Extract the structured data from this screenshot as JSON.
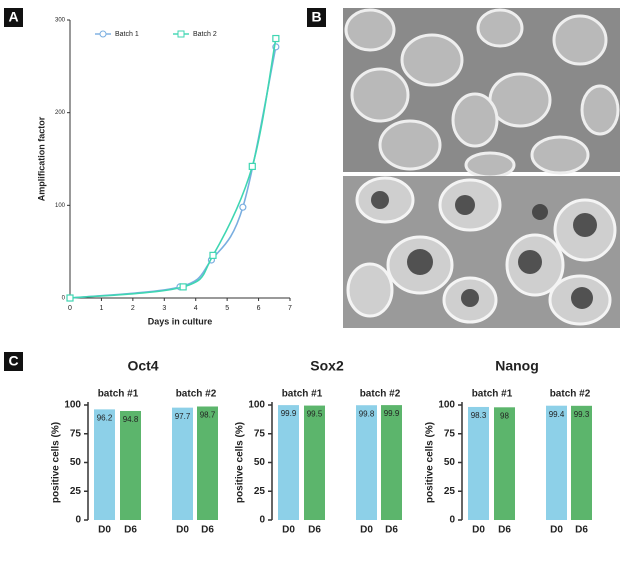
{
  "panel_labels": [
    "A",
    "B",
    "C"
  ],
  "chart_data": [
    {
      "type": "line",
      "xlabel": "Days in culture",
      "ylabel": "Amplification factor",
      "xlim": [
        0,
        7
      ],
      "xticks": [
        0,
        1,
        2,
        3,
        4,
        5,
        6,
        7
      ],
      "ylim": [
        0,
        300
      ],
      "yticks": [
        0,
        100,
        200,
        300
      ],
      "legend": "top",
      "series": [
        {
          "name": "Batch 1",
          "color": "#7aaee0",
          "marker": "circle",
          "x": [
            0,
            3.5,
            4.5,
            5.5,
            6.55
          ],
          "values": [
            0,
            12,
            41,
            98,
            271
          ]
        },
        {
          "name": "Batch 2",
          "color": "#3fd6b2",
          "marker": "square",
          "x": [
            0,
            3.6,
            4.55,
            5.8,
            6.55
          ],
          "values": [
            0,
            12,
            46,
            142,
            280
          ]
        }
      ]
    },
    {
      "type": "bar",
      "title": "Oct4",
      "ylabel": "positive cells (%)",
      "groups": [
        "batch #1",
        "batch #2"
      ],
      "categories": [
        "D0",
        "D6",
        "D0",
        "D6"
      ],
      "values": [
        96.2,
        94.8,
        97.7,
        98.7
      ],
      "colors": [
        "#8dd0e8",
        "#5cb56c",
        "#8dd0e8",
        "#5cb56c"
      ],
      "ylim": [
        0,
        100
      ],
      "yticks": [
        0,
        25,
        50,
        75,
        100
      ]
    },
    {
      "type": "bar",
      "title": "Sox2",
      "ylabel": "positive cells (%)",
      "groups": [
        "batch #1",
        "batch #2"
      ],
      "categories": [
        "D0",
        "D6",
        "D0",
        "D6"
      ],
      "values": [
        99.9,
        99.5,
        99.8,
        99.9
      ],
      "colors": [
        "#8dd0e8",
        "#5cb56c",
        "#8dd0e8",
        "#5cb56c"
      ],
      "ylim": [
        0,
        100
      ],
      "yticks": [
        0,
        25,
        50,
        75,
        100
      ]
    },
    {
      "type": "bar",
      "title": "Nanog",
      "ylabel": "positive cells (%)",
      "groups": [
        "batch #1",
        "batch #2"
      ],
      "categories": [
        "D0",
        "D6",
        "D0",
        "D6"
      ],
      "values": [
        98.3,
        98.0,
        99.4,
        99.3
      ],
      "colors": [
        "#8dd0e8",
        "#5cb56c",
        "#8dd0e8",
        "#5cb56c"
      ],
      "ylim": [
        0,
        100
      ],
      "yticks": [
        0,
        25,
        50,
        75,
        100
      ]
    }
  ]
}
